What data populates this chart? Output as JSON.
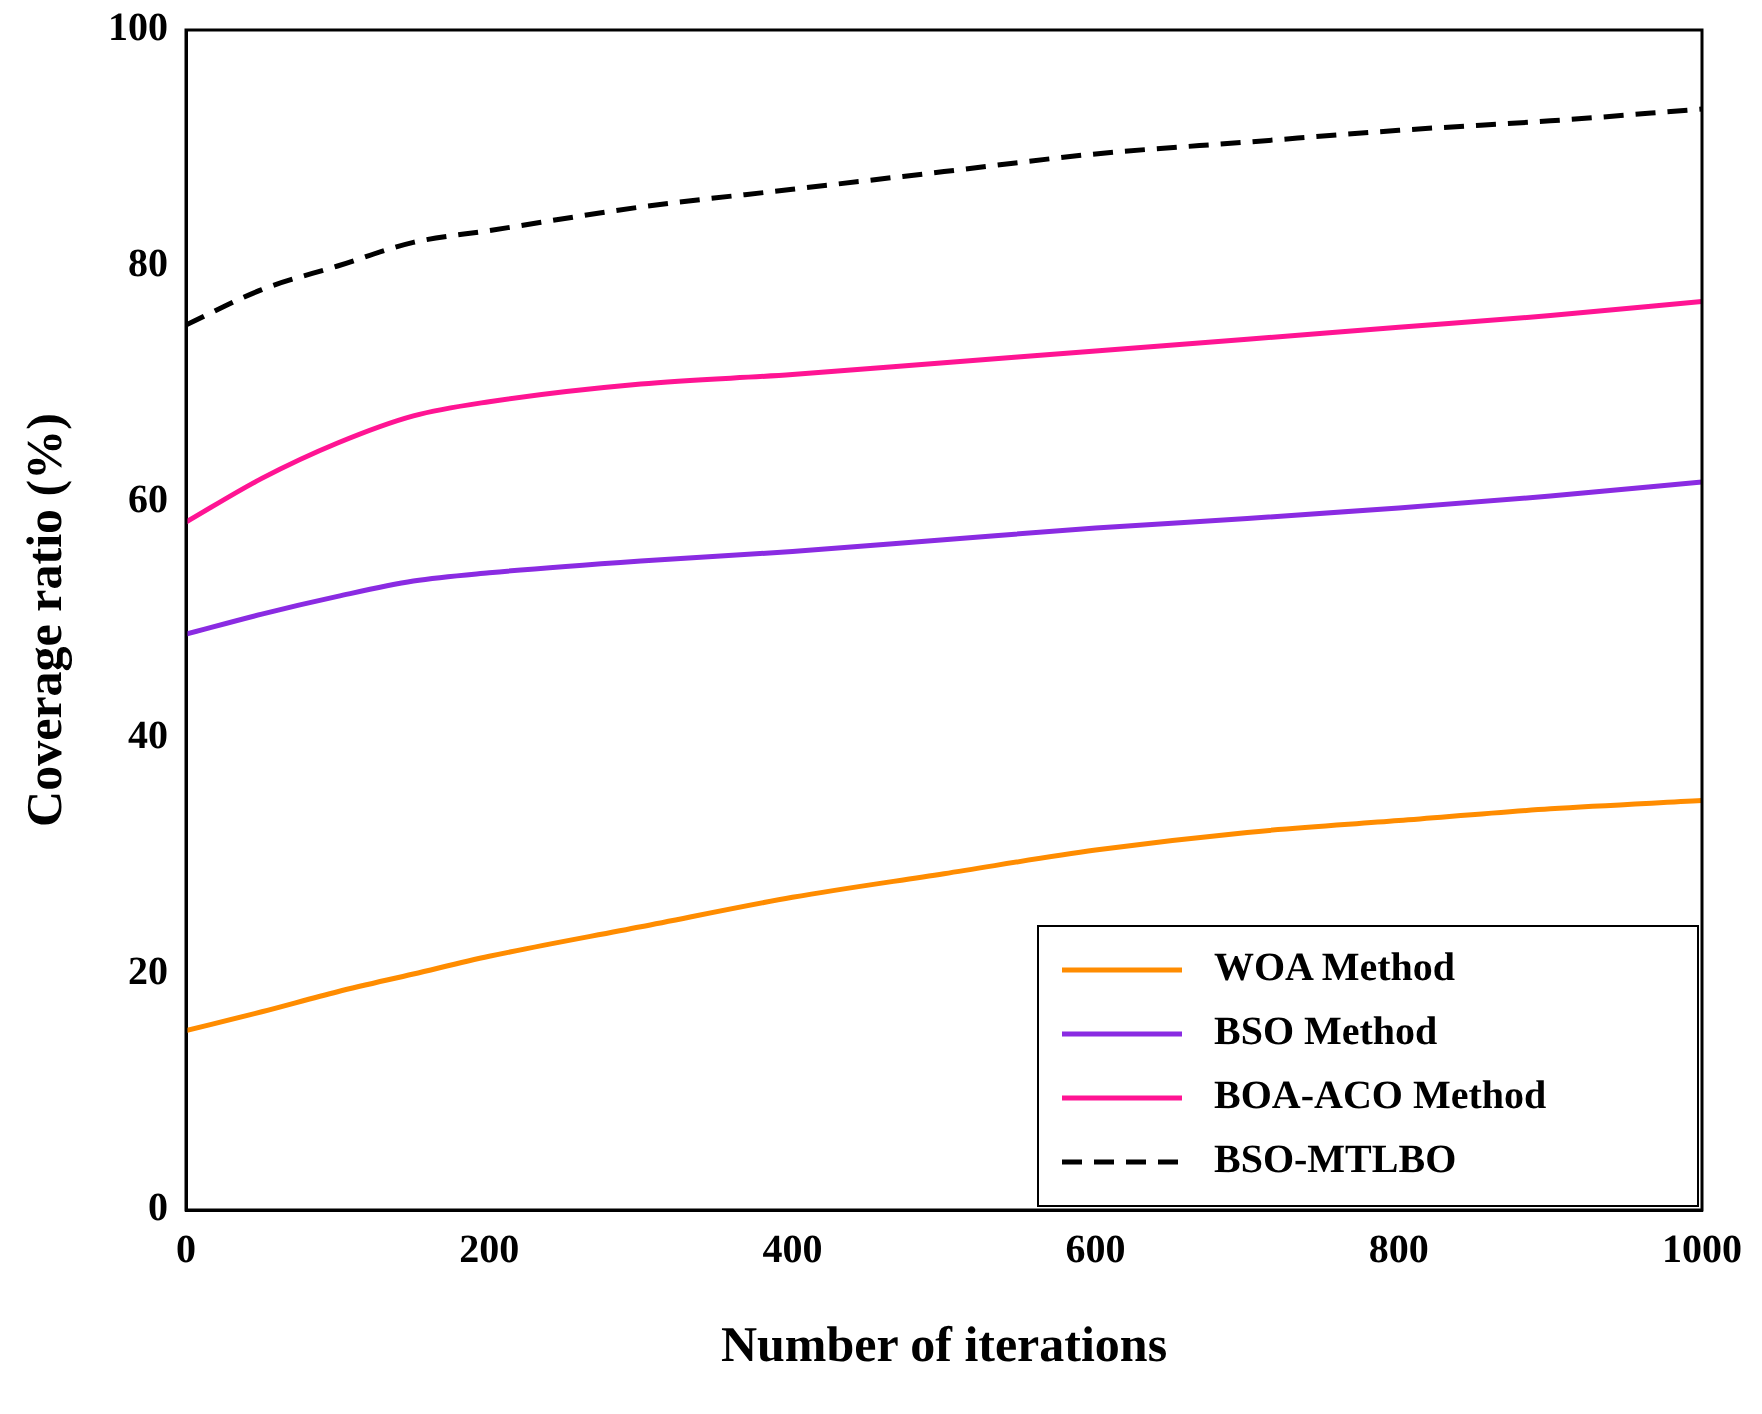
{
  "chart_data": {
    "type": "line",
    "xlabel": "Number of iterations",
    "ylabel": "Coverage ratio (%)",
    "x": [
      0,
      50,
      100,
      150,
      200,
      300,
      400,
      500,
      600,
      700,
      800,
      900,
      1000
    ],
    "series": [
      {
        "name": "WOA Method",
        "color": "#ff8c00",
        "values": [
          15.2,
          16.8,
          18.5,
          20,
          21.5,
          24,
          26.5,
          28.5,
          30.5,
          32,
          33,
          34,
          34.7
        ]
      },
      {
        "name": "BSO Method",
        "color": "#8a2be2",
        "values": [
          48.8,
          50.5,
          52,
          53.3,
          54,
          55,
          55.8,
          56.8,
          57.8,
          58.6,
          59.5,
          60.5,
          61.7
        ]
      },
      {
        "name": "BOA-ACO Method",
        "color": "#ff1493",
        "values": [
          58.3,
          62,
          65,
          67.3,
          68.5,
          70,
          70.8,
          71.8,
          72.8,
          73.8,
          74.8,
          75.8,
          77
        ]
      },
      {
        "name": "BSO-MTLBO",
        "color": "#000000",
        "line_style": "dashed",
        "values": [
          75,
          78,
          80,
          82,
          83,
          85,
          86.5,
          88,
          89.5,
          90.5,
          91.5,
          92.3,
          93.3
        ]
      }
    ],
    "xlim": [
      0,
      1000
    ],
    "xticks": [
      0,
      200,
      400,
      600,
      800,
      1000
    ],
    "ylim": [
      0,
      100
    ],
    "yticks": [
      0,
      20,
      40,
      60,
      80,
      100
    ],
    "grid": false,
    "legend": "bottom right"
  }
}
